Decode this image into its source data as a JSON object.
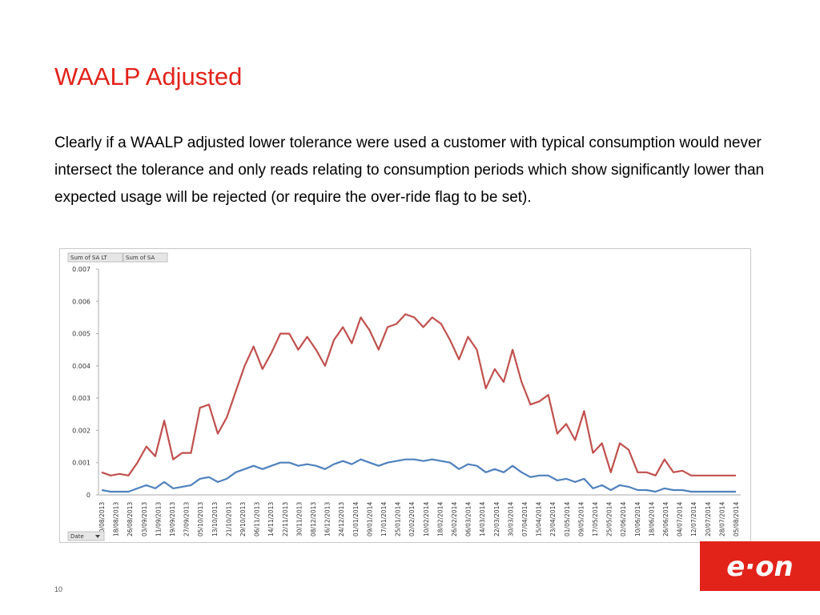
{
  "slide": {
    "title": "WAALP Adjusted",
    "body": "Clearly if a WAALP adjusted lower tolerance were used a customer with typical consumption would never intersect the tolerance and only reads relating to consumption periods which show significantly lower than expected usage will be rejected (or require the over-ride flag to be set).",
    "page_number": "10",
    "logo_text": "e·on"
  },
  "colors": {
    "title": "#e2231a",
    "brand": "#e2231a",
    "series_red": "#c0504d",
    "series_blue": "#4f81bd"
  },
  "chart_filters": {
    "field_buttons": [
      "Sum of SA LT",
      "Sum of SA"
    ],
    "axis_field_button": "Date",
    "dropdown_icon": "triangle-down-icon"
  },
  "chart_data": {
    "type": "line",
    "ylim": [
      0,
      0.007
    ],
    "yticks": [
      "0",
      "0.001",
      "0.002",
      "0.003",
      "0.004",
      "0.005",
      "0.006",
      "0.007"
    ],
    "grid": "none",
    "legend": "none",
    "x_tick_labels": [
      "10/08/2013",
      "18/08/2013",
      "26/08/2013",
      "03/09/2013",
      "11/09/2013",
      "19/09/2013",
      "27/09/2013",
      "05/10/2013",
      "13/10/2013",
      "21/10/2013",
      "29/10/2013",
      "06/11/2013",
      "14/11/2013",
      "22/11/2013",
      "30/11/2013",
      "08/12/2013",
      "16/12/2013",
      "24/12/2013",
      "01/01/2014",
      "09/01/2014",
      "17/01/2014",
      "25/01/2014",
      "02/02/2014",
      "10/02/2014",
      "18/02/2014",
      "26/02/2014",
      "06/03/2014",
      "14/03/2014",
      "22/03/2014",
      "30/03/2014",
      "07/04/2014",
      "15/04/2014",
      "23/04/2014",
      "01/05/2014",
      "09/05/2014",
      "17/05/2014",
      "25/05/2014",
      "02/06/2014",
      "10/06/2014",
      "18/06/2014",
      "26/06/2014",
      "04/07/2014",
      "12/07/2014",
      "20/07/2014",
      "28/07/2014",
      "05/08/2014"
    ],
    "series": [
      {
        "color": "#c0504d",
        "values": [
          0.0007,
          0.0006,
          0.00065,
          0.0006,
          0.001,
          0.0015,
          0.0012,
          0.0023,
          0.0011,
          0.0013,
          0.0013,
          0.0027,
          0.0028,
          0.0019,
          0.0024,
          0.0032,
          0.004,
          0.0046,
          0.0039,
          0.0044,
          0.005,
          0.005,
          0.0045,
          0.0049,
          0.0045,
          0.004,
          0.0048,
          0.0052,
          0.0047,
          0.0055,
          0.0051,
          0.0045,
          0.0052,
          0.0053,
          0.0056,
          0.0055,
          0.0052,
          0.0055,
          0.0053,
          0.0048,
          0.0042,
          0.0049,
          0.0045,
          0.0033,
          0.0039,
          0.0035,
          0.0045,
          0.0035,
          0.0028,
          0.0029,
          0.0031,
          0.0019,
          0.0022,
          0.0017,
          0.0026,
          0.0013,
          0.0016,
          0.0007,
          0.0016,
          0.0014,
          0.0007,
          0.0007,
          0.0006,
          0.0011,
          0.0007,
          0.00075,
          0.0006,
          0.0006,
          0.0006,
          0.0006,
          0.0006,
          0.0006
        ]
      },
      {
        "color": "#4f81bd",
        "values": [
          0.00015,
          0.0001,
          0.0001,
          0.0001,
          0.0002,
          0.0003,
          0.0002,
          0.0004,
          0.0002,
          0.00025,
          0.0003,
          0.0005,
          0.00055,
          0.0004,
          0.0005,
          0.0007,
          0.0008,
          0.0009,
          0.0008,
          0.0009,
          0.001,
          0.001,
          0.0009,
          0.00095,
          0.0009,
          0.0008,
          0.00095,
          0.00105,
          0.00095,
          0.0011,
          0.001,
          0.0009,
          0.001,
          0.00105,
          0.0011,
          0.0011,
          0.00105,
          0.0011,
          0.00105,
          0.001,
          0.0008,
          0.00095,
          0.0009,
          0.0007,
          0.0008,
          0.0007,
          0.0009,
          0.0007,
          0.00055,
          0.0006,
          0.0006,
          0.00045,
          0.0005,
          0.0004,
          0.0005,
          0.0002,
          0.0003,
          0.00015,
          0.0003,
          0.00025,
          0.00015,
          0.00015,
          0.0001,
          0.0002,
          0.00015,
          0.00015,
          0.0001,
          0.0001,
          0.0001,
          0.0001,
          0.0001,
          0.0001
        ]
      }
    ]
  }
}
